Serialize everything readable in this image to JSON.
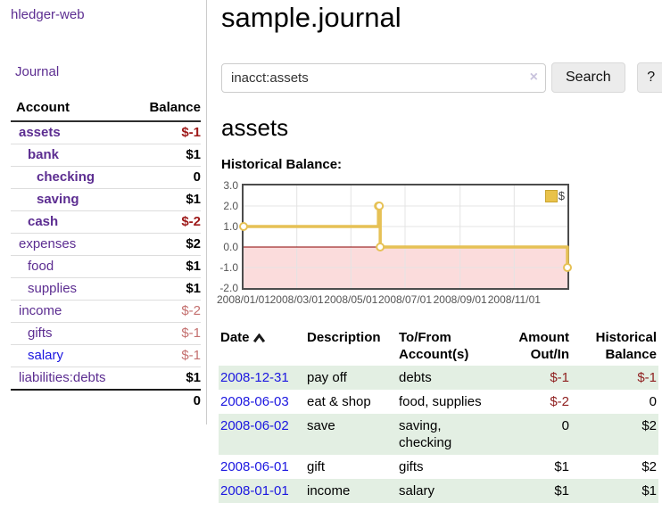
{
  "sidebar": {
    "brand": "hledger-web",
    "journal_link": "Journal",
    "table": {
      "account_header": "Account",
      "balance_header": "Balance",
      "accounts": [
        {
          "name": "assets",
          "depth": 0,
          "balance": "$-1",
          "selected": true,
          "balance_style": "neg-strong",
          "link_color": "purple"
        },
        {
          "name": "bank",
          "depth": 1,
          "balance": "$1",
          "selected": true,
          "balance_style": "pos",
          "link_color": "purple"
        },
        {
          "name": "checking",
          "depth": 2,
          "balance": "0",
          "selected": true,
          "balance_style": "pos",
          "link_color": "purple"
        },
        {
          "name": "saving",
          "depth": 2,
          "balance": "$1",
          "selected": true,
          "balance_style": "pos",
          "link_color": "purple"
        },
        {
          "name": "cash",
          "depth": 1,
          "balance": "$-2",
          "selected": true,
          "balance_style": "neg-strong",
          "link_color": "purple"
        },
        {
          "name": "expenses",
          "depth": 0,
          "balance": "$2",
          "selected": false,
          "balance_style": "pos",
          "link_color": "purple"
        },
        {
          "name": "food",
          "depth": 1,
          "balance": "$1",
          "selected": false,
          "balance_style": "pos",
          "link_color": "purple"
        },
        {
          "name": "supplies",
          "depth": 1,
          "balance": "$1",
          "selected": false,
          "balance_style": "pos",
          "link_color": "purple"
        },
        {
          "name": "income",
          "depth": 0,
          "balance": "$-2",
          "selected": false,
          "balance_style": "neg-soft",
          "link_color": "purple"
        },
        {
          "name": "gifts",
          "depth": 1,
          "balance": "$-1",
          "selected": false,
          "balance_style": "neg-soft",
          "link_color": "purple"
        },
        {
          "name": "salary",
          "depth": 1,
          "balance": "$-1",
          "selected": false,
          "balance_style": "neg-soft",
          "link_color": "blue"
        },
        {
          "name": "liabilities:debts",
          "depth": 0,
          "balance": "$1",
          "selected": false,
          "balance_style": "pos",
          "link_color": "purple"
        }
      ],
      "total": "0"
    }
  },
  "header": {
    "title": "sample.journal"
  },
  "search": {
    "value": "inacct:assets",
    "clear_icon": "×",
    "button_label": "Search",
    "help_label": "?"
  },
  "main": {
    "account_heading": "assets",
    "chart_title": "Historical Balance:"
  },
  "chart_data": {
    "type": "line",
    "step": true,
    "title": "Historical Balance",
    "xrange": [
      "2008-01-01",
      "2008-12-31"
    ],
    "ylim": [
      -2,
      3
    ],
    "yticks": [
      3,
      2,
      1,
      0,
      -1,
      -2
    ],
    "xticks": [
      "2008/01/01",
      "2008/03/01",
      "2008/05/01",
      "2008/07/01",
      "2008/09/01",
      "2008/11/01"
    ],
    "series": [
      {
        "name": "$",
        "color": "#e6c155",
        "x": [
          "2008-01-01",
          "2008-06-01",
          "2008-06-02",
          "2008-06-03",
          "2008-12-31"
        ],
        "values": [
          1,
          2,
          2,
          0,
          -1
        ]
      }
    ],
    "grid": true,
    "gridline_color": "#e4e4e4",
    "negative_region_color": "#fbdcdc",
    "zero_line_color": "#8b0000",
    "legend": {
      "label": "$",
      "position": "top-right"
    }
  },
  "register": {
    "columns": [
      "Date",
      "Description",
      "To/From\nAccount(s)",
      "Amount\nOut/In",
      "Historical\nBalance"
    ],
    "sort": {
      "column": "Date",
      "direction": "asc"
    },
    "rows": [
      {
        "date": "2008-12-31",
        "description": "pay off",
        "accounts": "debts",
        "amount": "$-1",
        "amount_neg": true,
        "balance": "$-1",
        "balance_neg": true
      },
      {
        "date": "2008-06-03",
        "description": "eat & shop",
        "accounts": "food, supplies",
        "amount": "$-2",
        "amount_neg": true,
        "balance": "0",
        "balance_neg": false
      },
      {
        "date": "2008-06-02",
        "description": "save",
        "accounts": "saving,\nchecking",
        "amount": "0",
        "amount_neg": false,
        "balance": "$2",
        "balance_neg": false
      },
      {
        "date": "2008-06-01",
        "description": "gift",
        "accounts": "gifts",
        "amount": "$1",
        "amount_neg": false,
        "balance": "$2",
        "balance_neg": false
      },
      {
        "date": "2008-01-01",
        "description": "income",
        "accounts": "salary",
        "amount": "$1",
        "amount_neg": false,
        "balance": "$1",
        "balance_neg": false
      }
    ]
  }
}
